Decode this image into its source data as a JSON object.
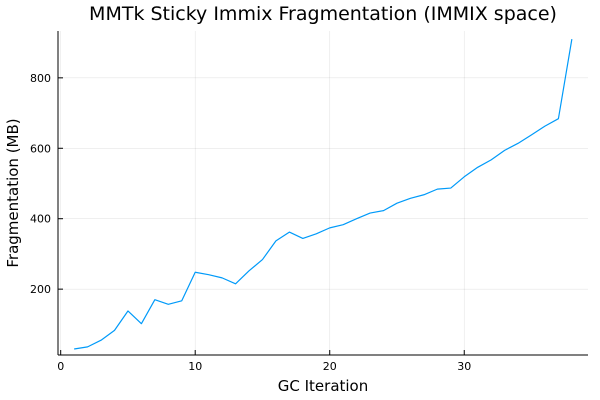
{
  "chart_data": {
    "type": "line",
    "title": "MMTk Sticky Immix Fragmentation (IMMIX space)",
    "xlabel": "GC Iteration",
    "ylabel": "Fragmentation (MB)",
    "xlim": [
      -0.2,
      39.2
    ],
    "ylim": [
      13,
      933
    ],
    "xticks": [
      0,
      10,
      20,
      30
    ],
    "yticks": [
      200,
      400,
      600,
      800
    ],
    "grid": true,
    "legend": "none",
    "line_color": "#009af9",
    "series": [
      {
        "x": [
          1,
          2,
          3,
          4,
          5,
          6,
          7,
          8,
          9,
          10,
          11,
          12,
          13,
          14,
          15,
          16,
          17,
          18,
          19,
          20,
          21,
          22,
          23,
          24,
          25,
          26,
          27,
          28,
          29,
          30,
          31,
          32,
          33,
          34,
          35,
          36,
          37,
          38
        ],
        "values": [
          30,
          36,
          55,
          83,
          138,
          102,
          170,
          157,
          167,
          248,
          241,
          232,
          215,
          252,
          284,
          337,
          362,
          344,
          357,
          374,
          383,
          400,
          416,
          423,
          444,
          458,
          468,
          484,
          487,
          519,
          546,
          567,
          594,
          614,
          638,
          663,
          684,
          910
        ]
      }
    ]
  }
}
